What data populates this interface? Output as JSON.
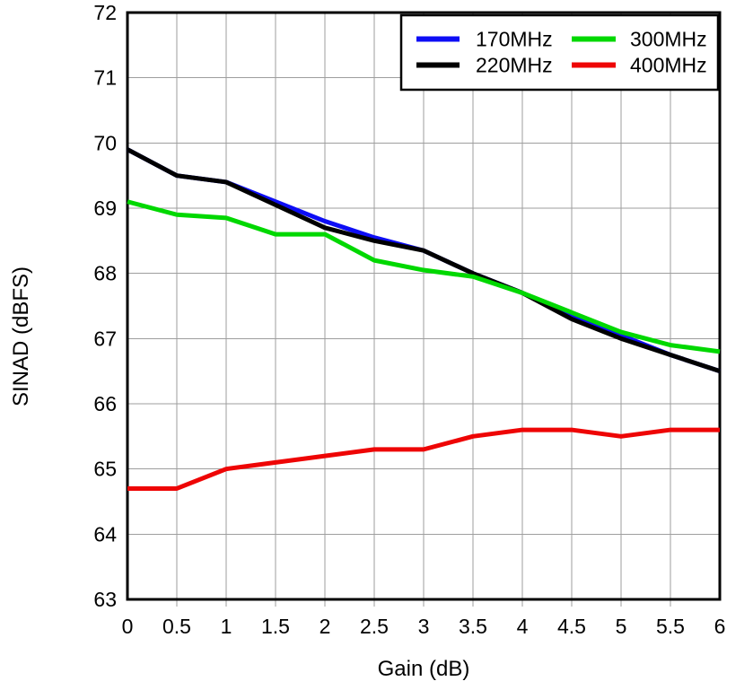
{
  "chart_data": {
    "type": "line",
    "title": "",
    "xlabel": "Gain (dB)",
    "ylabel": "SINAD (dBFS)",
    "xlim": [
      0,
      6
    ],
    "ylim": [
      63,
      72
    ],
    "grid": true,
    "legend_position": "top-right",
    "x": [
      0,
      0.5,
      1,
      1.5,
      2,
      2.5,
      3,
      3.5,
      4,
      4.5,
      5,
      5.5,
      6
    ],
    "x_tick_labels": [
      "0",
      "0.5",
      "1",
      "1.5",
      "2",
      "2.5",
      "3",
      "3.5",
      "4",
      "4.5",
      "5",
      "5.5",
      "6"
    ],
    "y_ticks": [
      63,
      64,
      65,
      66,
      67,
      68,
      69,
      70,
      71,
      72
    ],
    "x_grid_lines": [
      0.5,
      1,
      1.5,
      2,
      2.5,
      3,
      3.5,
      4,
      4.5,
      5,
      5.5
    ],
    "y_grid_lines": [
      64,
      65,
      66,
      67,
      68,
      69,
      70,
      71
    ],
    "series": [
      {
        "name": "170MHz",
        "color": "#0D0DF5",
        "values": [
          69.9,
          69.5,
          69.4,
          69.1,
          68.8,
          68.55,
          68.35,
          68.0,
          67.7,
          67.35,
          67.05,
          66.75,
          66.5
        ]
      },
      {
        "name": "220MHz",
        "color": "#000000",
        "values": [
          69.9,
          69.5,
          69.4,
          69.05,
          68.7,
          68.5,
          68.35,
          68.0,
          67.7,
          67.3,
          67.0,
          66.75,
          66.5
        ]
      },
      {
        "name": "300MHz",
        "color": "#00D800",
        "values": [
          69.1,
          68.9,
          68.85,
          68.6,
          68.6,
          68.2,
          68.05,
          67.95,
          67.7,
          67.4,
          67.1,
          66.9,
          66.8
        ]
      },
      {
        "name": "400MHz",
        "color": "#EE0505",
        "values": [
          64.7,
          64.7,
          65.0,
          65.1,
          65.2,
          65.3,
          65.3,
          65.5,
          65.6,
          65.6,
          65.5,
          65.6,
          65.6
        ]
      }
    ]
  },
  "colors": {
    "background": "#FFFFFF",
    "grid": "#9E9E9E",
    "axis": "#000000",
    "legend_border": "#000000",
    "legend_background": "#FFFFFF"
  }
}
